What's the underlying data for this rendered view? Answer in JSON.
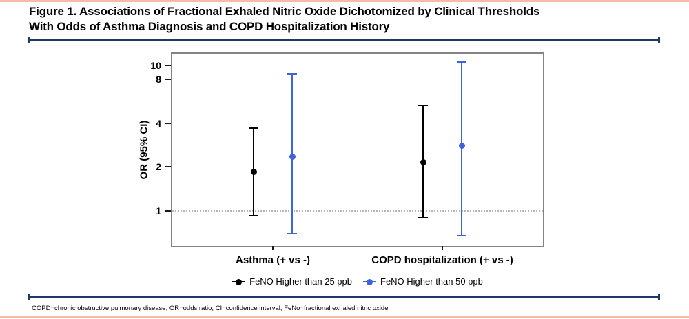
{
  "figure": {
    "title_line1": "Figure 1. Associations of Fractional Exhaled Nitric Oxide Dichotomized by Clinical Thresholds",
    "title_line2": "With Odds of Asthma Diagnosis and COPD Hospitalization History",
    "footnote": "COPD=chronic obstructive pulmonary disease; OR=odds ratio; CI=confidence interval; FeNo=fractional exhaled nitric oxide"
  },
  "colors": {
    "page_edge_strip": "#F6BBA6",
    "divider_rule": "#1F3864",
    "series_feno25": "#000000",
    "series_feno50": "#3E63DC",
    "plot_border": "#848484",
    "reference_line": "#B4B4B4"
  },
  "chart_data": {
    "type": "scatter",
    "style": "pointrange-with-95ci",
    "title": "",
    "xlabel": "",
    "ylabel": "OR (95% CI)",
    "yscale": "log",
    "ylim": [
      0.57,
      12
    ],
    "yticks": [
      1,
      2,
      4,
      8,
      10
    ],
    "reference_line_y": 1,
    "grid": false,
    "legend_position": "bottom",
    "categories": [
      "Asthma (+ vs -)",
      "COPD hospitalization (+ vs -)"
    ],
    "series": [
      {
        "name": "FeNO Higher than 25 ppb",
        "color": "#000000",
        "points": [
          {
            "category": "Asthma (+ vs -)",
            "or": 1.85,
            "ci_low": 0.92,
            "ci_high": 3.72
          },
          {
            "category": "COPD hospitalization (+ vs -)",
            "or": 2.15,
            "ci_low": 0.89,
            "ci_high": 5.3
          }
        ]
      },
      {
        "name": "FeNO Higher than 50 ppb",
        "color": "#3E63DC",
        "points": [
          {
            "category": "Asthma (+ vs -)",
            "or": 2.35,
            "ci_low": 0.69,
            "ci_high": 8.7
          },
          {
            "category": "COPD hospitalization (+ vs -)",
            "or": 2.8,
            "ci_low": 0.67,
            "ci_high": 10.5
          }
        ]
      }
    ]
  }
}
